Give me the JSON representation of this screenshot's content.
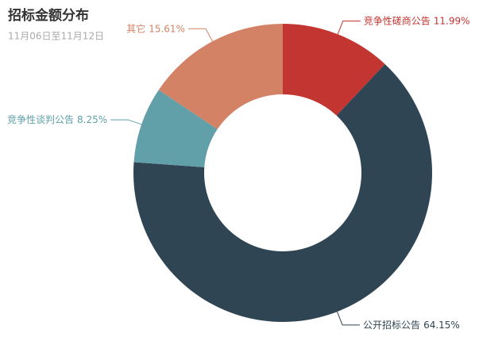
{
  "chart_data": {
    "type": "pie",
    "donut": true,
    "title": "招标金额分布",
    "subtitle": "11月06日至11月12日",
    "categories": [
      "竞争性磋商公告",
      "公开招标公告",
      "竞争性谈判公告",
      "其它"
    ],
    "values": [
      11.99,
      64.15,
      8.25,
      15.61
    ],
    "value_labels": [
      "11.99%",
      "64.15%",
      "8.25%",
      "15.61%"
    ],
    "colors": [
      "#c23531",
      "#2f4554",
      "#61a0a8",
      "#d48265"
    ]
  }
}
